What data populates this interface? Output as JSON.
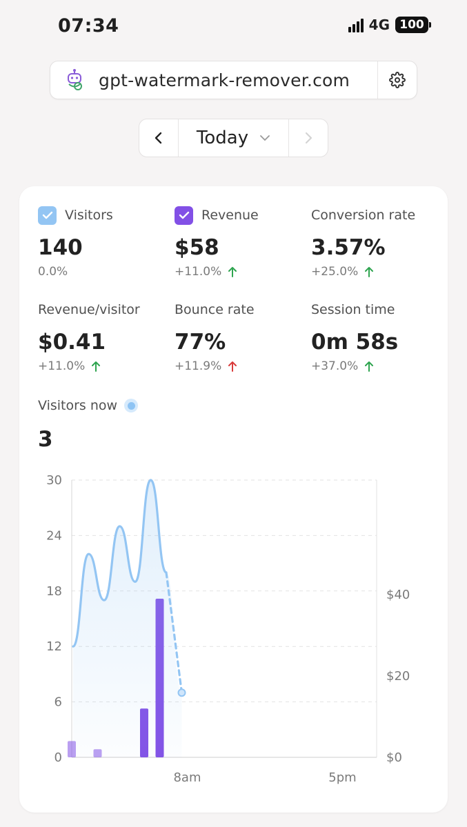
{
  "status_bar": {
    "time": "07:34",
    "network": "4G",
    "battery": "100"
  },
  "browser": {
    "domain": "gpt-watermark-remover.com"
  },
  "date_nav": {
    "period": "Today"
  },
  "colors": {
    "visitors": "#93c5f3",
    "revenue": "#8250e6",
    "up": "#2ea44f",
    "down": "#d93b3b"
  },
  "metrics": [
    {
      "label": "Visitors",
      "value": "140",
      "change": "0.0%",
      "trend": "none",
      "checkbox": "visitors"
    },
    {
      "label": "Revenue",
      "value": "$58",
      "change": "+11.0%",
      "trend": "up",
      "checkbox": "revenue"
    },
    {
      "label": "Conversion rate",
      "value": "3.57%",
      "change": "+25.0%",
      "trend": "up"
    },
    {
      "label": "Revenue/visitor",
      "value": "$0.41",
      "change": "+11.0%",
      "trend": "up"
    },
    {
      "label": "Bounce rate",
      "value": "77%",
      "change": "+11.9%",
      "trend": "up-bad"
    },
    {
      "label": "Session time",
      "value": "0m 58s",
      "change": "+37.0%",
      "trend": "up"
    }
  ],
  "visitors_now": {
    "label": "Visitors now",
    "value": "3"
  },
  "chart_data": {
    "type": "line",
    "y_left": {
      "min": 0,
      "max": 30,
      "ticks": [
        "0",
        "6",
        "12",
        "18",
        "24",
        "30"
      ]
    },
    "y_right": {
      "ticks": [
        "$0",
        "$20",
        "$40"
      ]
    },
    "x_ticks": [
      "8am",
      "5pm"
    ],
    "grid": true,
    "visitors_series": {
      "hours": [
        0,
        1,
        2,
        3,
        4,
        5,
        6,
        7
      ],
      "values": [
        12,
        22,
        17,
        25,
        19,
        30,
        20,
        7
      ],
      "dashed_from_index": 6
    },
    "revenue_series": {
      "hours": [
        0,
        1,
        4,
        5
      ],
      "values": [
        4,
        2,
        12,
        39
      ]
    }
  }
}
